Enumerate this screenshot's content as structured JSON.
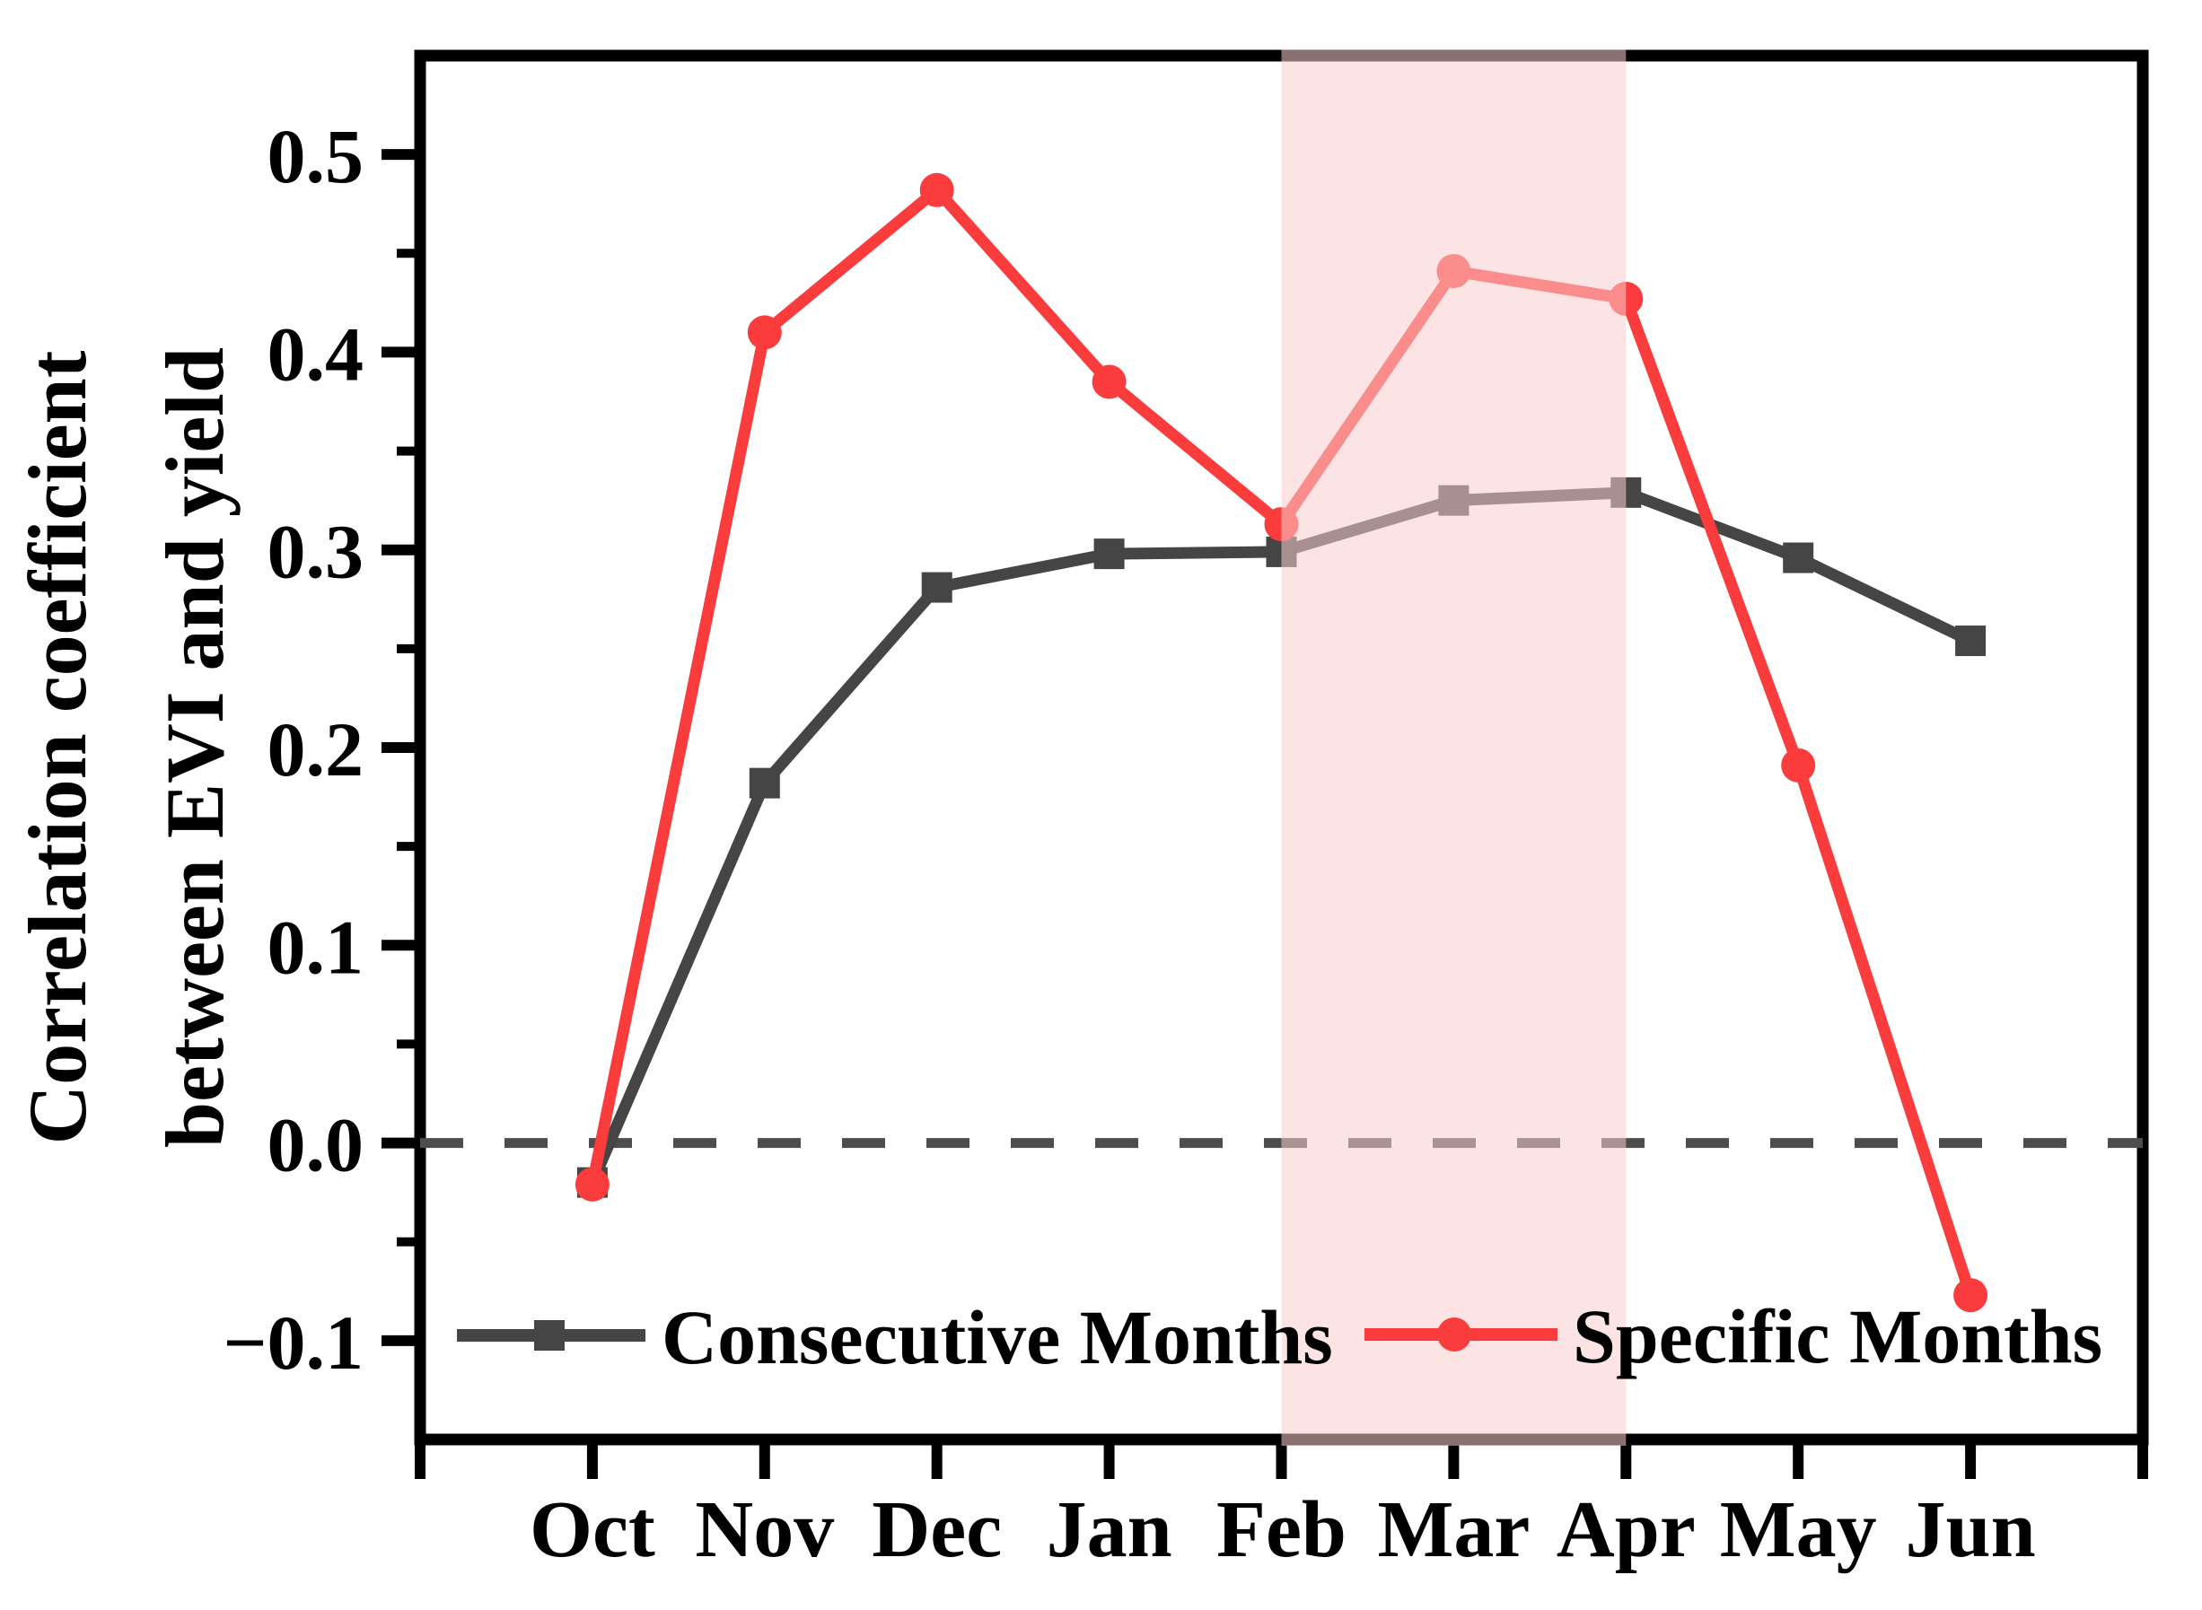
{
  "chart_data": {
    "type": "line",
    "title": "",
    "ylabel_lines": [
      "Correlation coefficient",
      "between EVI and yield"
    ],
    "xlabel": "",
    "categories": [
      "Oct",
      "Nov",
      "Dec",
      "Jan",
      "Feb",
      "Mar",
      "Apr",
      "May",
      "Jun"
    ],
    "ylim": [
      -0.15,
      0.55
    ],
    "ytick_values": [
      0.5,
      0.4,
      0.3,
      0.2,
      0.1,
      0.0,
      -0.1
    ],
    "ytick_labels": [
      "0.5",
      "0.4",
      "0.3",
      "0.2",
      "0.1",
      "0.0",
      "−0.1"
    ],
    "yminor_values": [
      0.45,
      0.35,
      0.25,
      0.15,
      0.05,
      -0.05
    ],
    "grid": false,
    "series": [
      {
        "name": "Consecutive Months",
        "color": "#454545",
        "marker": "square",
        "values": [
          -0.02,
          0.182,
          0.281,
          0.298,
          0.299,
          0.325,
          0.329,
          0.296,
          0.254
        ]
      },
      {
        "name": "Specific Months",
        "color": "#FA3C3C",
        "marker": "circle",
        "values": [
          -0.021,
          0.41,
          0.482,
          0.385,
          0.313,
          0.441,
          0.427,
          0.191,
          -0.077
        ]
      }
    ],
    "highlight_band": {
      "from": "Feb",
      "to": "Apr",
      "color": "rgba(249,205,205,0.55)"
    },
    "zero_line": {
      "value": 0.0,
      "style": "dashed",
      "color": "#4D4D4D"
    },
    "legend": {
      "position": "bottom-inside"
    },
    "axis_color": "#000000"
  }
}
